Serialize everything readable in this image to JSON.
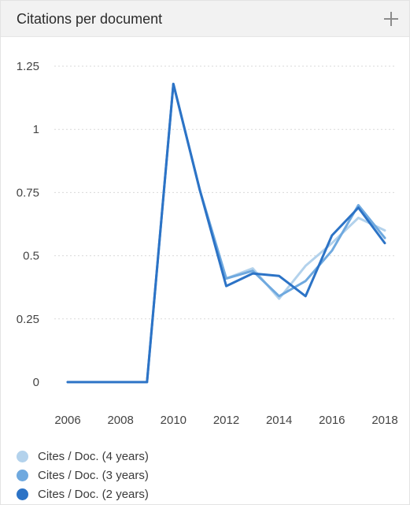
{
  "header": {
    "title": "Citations per document"
  },
  "chart_data": {
    "type": "line",
    "title": "Citations per document",
    "x": [
      2006,
      2007,
      2008,
      2009,
      2010,
      2011,
      2012,
      2013,
      2014,
      2015,
      2016,
      2017,
      2018
    ],
    "x_ticks": [
      "2006",
      "2008",
      "2010",
      "2012",
      "2014",
      "2016",
      "2018"
    ],
    "y_ticks": [
      "0",
      "0.25",
      "0.5",
      "0.75",
      "1",
      "1.25"
    ],
    "ylim": [
      0,
      1.25
    ],
    "xlim": [
      2006,
      2018
    ],
    "grid": true,
    "legend_position": "bottom",
    "series": [
      {
        "name": "Cites / Doc. (4 years)",
        "color": "#b3d2ec",
        "values": [
          0,
          0,
          0,
          0,
          1.18,
          0.76,
          0.41,
          0.45,
          0.33,
          0.46,
          0.55,
          0.65,
          0.6
        ]
      },
      {
        "name": "Cites / Doc. (3 years)",
        "color": "#6fa9df",
        "values": [
          0,
          0,
          0,
          0,
          1.18,
          0.76,
          0.41,
          0.44,
          0.34,
          0.4,
          0.52,
          0.7,
          0.57
        ]
      },
      {
        "name": "Cites / Doc. (2 years)",
        "color": "#2c73c6",
        "values": [
          0,
          0,
          0,
          0,
          1.18,
          0.76,
          0.38,
          0.43,
          0.42,
          0.34,
          0.58,
          0.69,
          0.55
        ]
      }
    ]
  }
}
